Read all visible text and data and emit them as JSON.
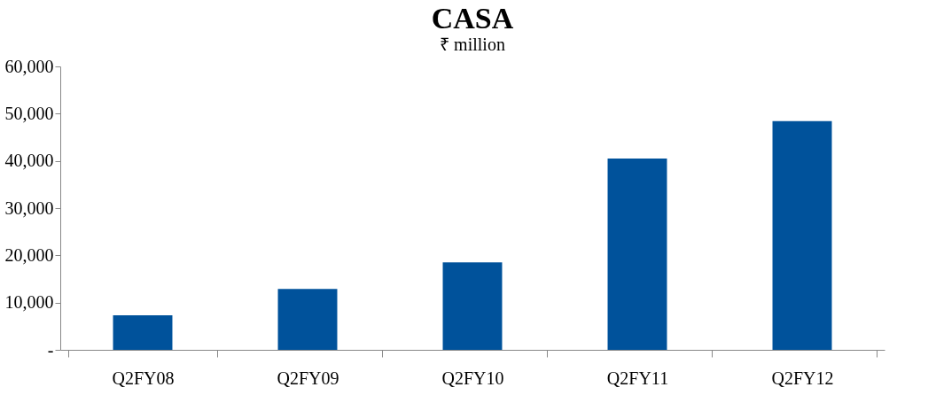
{
  "chart_data": {
    "type": "bar",
    "title": "CASA",
    "ylabel": "₹ million",
    "categories": [
      "Q2FY08",
      "Q2FY09",
      "Q2FY10",
      "Q2FY11",
      "Q2FY12"
    ],
    "values": [
      7300,
      12900,
      18500,
      40500,
      48400
    ],
    "color": "#00529b",
    "ylim": [
      0,
      60000
    ],
    "yticks": [
      {
        "value": 0,
        "label": "-"
      },
      {
        "value": 10000,
        "label": "10,000"
      },
      {
        "value": 20000,
        "label": "20,000"
      },
      {
        "value": 30000,
        "label": "30,000"
      },
      {
        "value": 40000,
        "label": "40,000"
      },
      {
        "value": 50000,
        "label": "50,000"
      },
      {
        "value": 60000,
        "label": "60,000"
      }
    ],
    "grid": false
  }
}
